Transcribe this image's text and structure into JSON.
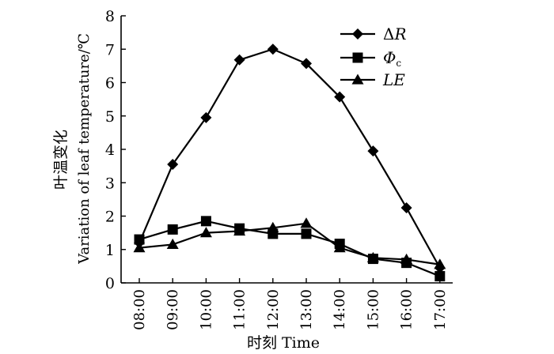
{
  "chart_data": {
    "type": "line",
    "title": "",
    "xlabel": "时刻 Time",
    "ylabel_cn": "叶温变化",
    "ylabel_en": "Variation of leaf temperature/℃",
    "categories": [
      "08:00",
      "09:00",
      "10:00",
      "11:00",
      "12:00",
      "13:00",
      "14:00",
      "15:00",
      "16:00",
      "17:00"
    ],
    "ylim": [
      0,
      8
    ],
    "yticks": [
      "0",
      "1",
      "2",
      "3",
      "4",
      "5",
      "6",
      "7",
      "8"
    ],
    "grid": false,
    "legend_position": "top-right",
    "series": [
      {
        "name": "ΔR",
        "marker": "diamond",
        "values": [
          1.2,
          3.55,
          4.95,
          6.68,
          7.0,
          6.57,
          5.57,
          3.95,
          2.25,
          0.45
        ]
      },
      {
        "name": "Φc",
        "marker": "square",
        "values": [
          1.3,
          1.6,
          1.85,
          1.63,
          1.47,
          1.47,
          1.17,
          0.72,
          0.6,
          0.2
        ]
      },
      {
        "name": "LE",
        "marker": "triangle",
        "values": [
          1.05,
          1.15,
          1.5,
          1.55,
          1.65,
          1.78,
          1.05,
          0.75,
          0.7,
          0.55
        ]
      }
    ],
    "color": "#000000"
  }
}
